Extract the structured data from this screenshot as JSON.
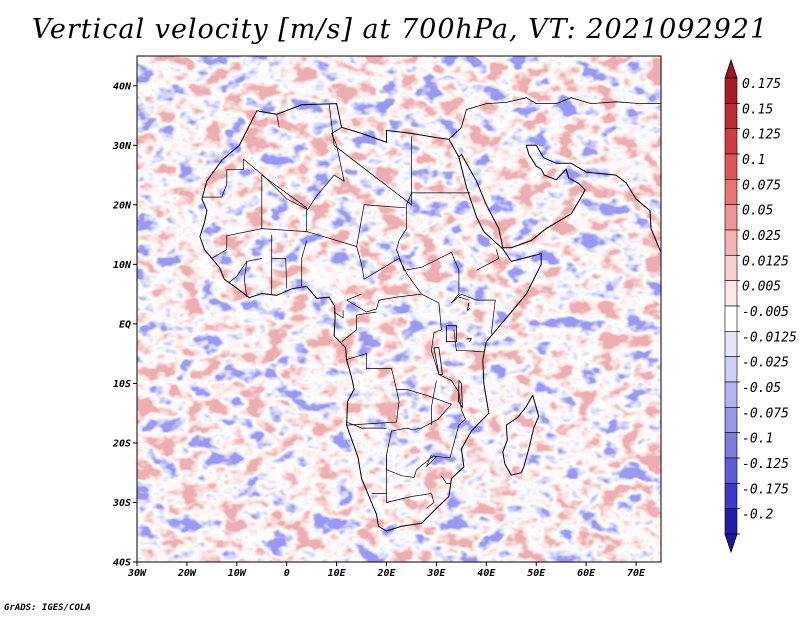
{
  "title": "Vertical velocity [m/s] at 700hPa, VT: 2021092921",
  "credit": "GrADS: IGES/COLA",
  "map": {
    "lon_range": [
      -30,
      75
    ],
    "lat_range": [
      -40,
      45
    ],
    "lat_ticks": [
      {
        "lat": 40,
        "label": "40N"
      },
      {
        "lat": 30,
        "label": "30N"
      },
      {
        "lat": 20,
        "label": "20N"
      },
      {
        "lat": 10,
        "label": "10N"
      },
      {
        "lat": 0,
        "label": "EQ"
      },
      {
        "lat": -10,
        "label": "10S"
      },
      {
        "lat": -20,
        "label": "20S"
      },
      {
        "lat": -30,
        "label": "30S"
      },
      {
        "lat": -40,
        "label": "40S"
      }
    ],
    "lon_ticks": [
      {
        "lon": -30,
        "label": "30W"
      },
      {
        "lon": -20,
        "label": "20W"
      },
      {
        "lon": -10,
        "label": "10W"
      },
      {
        "lon": 0,
        "label": "0"
      },
      {
        "lon": 10,
        "label": "10E"
      },
      {
        "lon": 20,
        "label": "20E"
      },
      {
        "lon": 30,
        "label": "30E"
      },
      {
        "lon": 40,
        "label": "40E"
      },
      {
        "lon": 50,
        "label": "50E"
      },
      {
        "lon": 60,
        "label": "60E"
      },
      {
        "lon": 70,
        "label": "70E"
      }
    ],
    "africa_outline": [
      [
        -17,
        21
      ],
      [
        -16,
        24
      ],
      [
        -13,
        27.5
      ],
      [
        -9.5,
        30
      ],
      [
        -6,
        35.8
      ],
      [
        -2,
        35.2
      ],
      [
        3,
        36.8
      ],
      [
        10,
        37
      ],
      [
        11,
        33
      ],
      [
        15,
        32
      ],
      [
        20,
        30.5
      ],
      [
        20,
        32.5
      ],
      [
        25,
        32
      ],
      [
        30,
        31.3
      ],
      [
        32.5,
        31
      ],
      [
        34.5,
        28
      ],
      [
        36,
        23
      ],
      [
        38,
        18
      ],
      [
        39.5,
        15.5
      ],
      [
        43.3,
        12.6
      ],
      [
        45,
        10.5
      ],
      [
        51,
        11.8
      ],
      [
        51,
        10
      ],
      [
        48,
        5
      ],
      [
        45,
        2
      ],
      [
        42,
        -1
      ],
      [
        40,
        -3
      ],
      [
        39.3,
        -6
      ],
      [
        39.5,
        -10
      ],
      [
        40.5,
        -15
      ],
      [
        37,
        -18
      ],
      [
        35,
        -21
      ],
      [
        35.5,
        -24
      ],
      [
        33,
        -26
      ],
      [
        32.5,
        -29
      ],
      [
        30,
        -31
      ],
      [
        27,
        -33.5
      ],
      [
        23,
        -34
      ],
      [
        20,
        -34.8
      ],
      [
        18.4,
        -34
      ],
      [
        18,
        -32
      ],
      [
        16,
        -28
      ],
      [
        15,
        -26
      ],
      [
        14.3,
        -22.5
      ],
      [
        12,
        -17
      ],
      [
        12.2,
        -13
      ],
      [
        13.5,
        -11
      ],
      [
        13,
        -9
      ],
      [
        12,
        -6
      ],
      [
        11.8,
        -4
      ],
      [
        9.5,
        -2
      ],
      [
        9.7,
        1
      ],
      [
        9.6,
        3
      ],
      [
        8.5,
        4.5
      ],
      [
        6,
        4.3
      ],
      [
        4,
        6.3
      ],
      [
        1,
        5.9
      ],
      [
        -2,
        4.8
      ],
      [
        -5,
        5.1
      ],
      [
        -7.5,
        4.4
      ],
      [
        -10,
        6
      ],
      [
        -12.5,
        7.5
      ],
      [
        -13.5,
        9.5
      ],
      [
        -15,
        11
      ],
      [
        -16.5,
        12.5
      ],
      [
        -17.4,
        14.7
      ],
      [
        -16.5,
        17
      ],
      [
        -16,
        19
      ],
      [
        -17,
        21
      ]
    ],
    "madagascar_outline": [
      [
        49.3,
        -12
      ],
      [
        50.5,
        -15.5
      ],
      [
        49.5,
        -17.5
      ],
      [
        48.5,
        -21
      ],
      [
        47.5,
        -24
      ],
      [
        47,
        -25
      ],
      [
        45,
        -25.4
      ],
      [
        43.7,
        -23.5
      ],
      [
        43.3,
        -21.5
      ],
      [
        44.2,
        -19.5
      ],
      [
        44,
        -17
      ],
      [
        46.3,
        -15.7
      ],
      [
        47.9,
        -14
      ],
      [
        49.3,
        -12
      ]
    ],
    "arabia_outline": [
      [
        32.5,
        31
      ],
      [
        35,
        33
      ],
      [
        36,
        36
      ],
      [
        40,
        37
      ],
      [
        44,
        37.2
      ],
      [
        48,
        38
      ],
      [
        50,
        37
      ],
      [
        54,
        37
      ],
      [
        57,
        38
      ],
      [
        61,
        37
      ],
      [
        66,
        37.3
      ],
      [
        71,
        37
      ],
      [
        75,
        37
      ],
      [
        75,
        45
      ]
    ],
    "arabia_coast": [
      [
        34.5,
        28
      ],
      [
        35,
        28.5
      ],
      [
        38,
        24
      ],
      [
        40,
        20
      ],
      [
        42.5,
        16
      ],
      [
        43.3,
        12.8
      ],
      [
        45,
        12.8
      ],
      [
        49,
        14
      ],
      [
        52,
        16
      ],
      [
        55,
        17.5
      ],
      [
        57,
        18.5
      ],
      [
        58.8,
        21
      ],
      [
        59.8,
        22.5
      ],
      [
        58.5,
        23.6
      ],
      [
        56.5,
        24.5
      ],
      [
        56,
        26
      ],
      [
        54,
        24.2
      ],
      [
        51.6,
        25
      ],
      [
        51,
        26
      ],
      [
        50,
        26.5
      ],
      [
        48.5,
        28.5
      ],
      [
        48,
        30
      ],
      [
        50,
        30
      ],
      [
        51.5,
        27.9
      ],
      [
        54,
        27
      ],
      [
        57,
        27
      ],
      [
        60,
        25.5
      ],
      [
        66,
        25
      ],
      [
        68,
        23.7
      ],
      [
        70,
        21
      ],
      [
        72.8,
        19
      ],
      [
        73,
        16
      ],
      [
        74,
        14
      ],
      [
        75,
        12
      ]
    ],
    "borders": [
      [
        [
          -8.7,
          27.7
        ],
        [
          -8.7,
          25.9
        ],
        [
          -12,
          25.9
        ],
        [
          -12,
          23.5
        ],
        [
          -13,
          21.3
        ],
        [
          -17,
          21.3
        ]
      ],
      [
        [
          -8.7,
          27.7
        ],
        [
          -4.8,
          25
        ],
        [
          0,
          21
        ],
        [
          4.2,
          19.2
        ],
        [
          6,
          21.5
        ],
        [
          9.5,
          25
        ],
        [
          11.5,
          24
        ],
        [
          10,
          30
        ],
        [
          9,
          32
        ],
        [
          11,
          33
        ]
      ],
      [
        [
          -1.5,
          33
        ],
        [
          -2,
          35.1
        ]
      ],
      [
        [
          9.5,
          30
        ],
        [
          8.5,
          37
        ]
      ],
      [
        [
          9.5,
          30
        ],
        [
          25,
          20
        ],
        [
          25,
          31.5
        ]
      ],
      [
        [
          25,
          22
        ],
        [
          36.8,
          22
        ]
      ],
      [
        [
          25,
          22
        ],
        [
          24,
          20
        ],
        [
          24,
          16
        ],
        [
          22.5,
          14
        ],
        [
          22,
          12.5
        ],
        [
          23.5,
          9
        ],
        [
          27,
          9.5
        ],
        [
          33,
          12
        ],
        [
          34.5,
          9
        ],
        [
          34.5,
          5
        ],
        [
          33,
          3.5
        ],
        [
          35,
          5
        ],
        [
          38,
          4
        ],
        [
          41.8,
          4
        ],
        [
          41,
          -1.7
        ]
      ],
      [
        [
          -12,
          15
        ],
        [
          -12,
          12.5
        ],
        [
          -15,
          11
        ]
      ],
      [
        [
          -5,
          25
        ],
        [
          -5,
          16
        ],
        [
          -12,
          14.8
        ]
      ],
      [
        [
          -5,
          25
        ],
        [
          4,
          19.5
        ]
      ],
      [
        [
          -5,
          16
        ],
        [
          4,
          15.5
        ],
        [
          4,
          19.5
        ]
      ],
      [
        [
          4,
          15.5
        ],
        [
          12,
          13.5
        ],
        [
          14,
          13
        ],
        [
          15.5,
          20
        ],
        [
          23.8,
          19.5
        ]
      ],
      [
        [
          14,
          13
        ],
        [
          15,
          10
        ],
        [
          15.5,
          7.5
        ],
        [
          22.5,
          11
        ],
        [
          24,
          8.5
        ],
        [
          27,
          5
        ],
        [
          30.5,
          3.5
        ],
        [
          31,
          -1
        ],
        [
          29.5,
          -1.5
        ],
        [
          29,
          -4.5
        ],
        [
          30.5,
          -8.5
        ],
        [
          33,
          -9.5
        ],
        [
          34.5,
          -11.5
        ],
        [
          35,
          -14.5
        ],
        [
          35.8,
          -16
        ],
        [
          34.5,
          -17
        ],
        [
          32.7,
          -22.5
        ],
        [
          31.3,
          -22.4
        ],
        [
          29.4,
          -22.2
        ],
        [
          26,
          -24.5
        ],
        [
          25.5,
          -25.8
        ],
        [
          23,
          -25.5
        ],
        [
          20,
          -24.5
        ],
        [
          20,
          -22
        ],
        [
          21,
          -18
        ],
        [
          24,
          -17.5
        ],
        [
          25.3,
          -17.8
        ],
        [
          27,
          -17.5
        ],
        [
          30.4,
          -16
        ],
        [
          33,
          -13.5
        ],
        [
          28,
          -12
        ],
        [
          24,
          -11
        ],
        [
          22,
          -11
        ],
        [
          22.5,
          -13
        ],
        [
          22,
          -16.5
        ],
        [
          12,
          -17
        ]
      ],
      [
        [
          3,
          11
        ],
        [
          3,
          6.3
        ]
      ],
      [
        [
          3,
          11
        ],
        [
          4,
          14
        ]
      ],
      [
        [
          -3,
          15
        ],
        [
          -3,
          5
        ]
      ],
      [
        [
          -3,
          11
        ],
        [
          -0.2,
          11
        ],
        [
          0,
          6
        ]
      ],
      [
        [
          -5,
          11
        ],
        [
          -8,
          10.5
        ],
        [
          -8.5,
          7.5
        ],
        [
          -8,
          4.5
        ]
      ],
      [
        [
          -8,
          10.5
        ],
        [
          -10,
          8
        ],
        [
          -11.5,
          7
        ]
      ],
      [
        [
          12,
          4
        ],
        [
          16,
          2
        ],
        [
          18,
          2.5
        ],
        [
          18.5,
          4
        ],
        [
          22,
          4.5
        ],
        [
          27,
          5
        ]
      ],
      [
        [
          12,
          4
        ],
        [
          15,
          5
        ]
      ],
      [
        [
          9.5,
          2
        ],
        [
          11.3,
          1
        ],
        [
          11.3,
          2.3
        ]
      ],
      [
        [
          11,
          -3
        ],
        [
          14,
          -1
        ],
        [
          14,
          1.5
        ],
        [
          18,
          2
        ]
      ],
      [
        [
          12,
          -6
        ],
        [
          16,
          -5
        ],
        [
          16,
          -7.5
        ],
        [
          21,
          -7.5
        ],
        [
          22,
          -11
        ]
      ],
      [
        [
          12,
          -16.5
        ],
        [
          15,
          -17.5
        ],
        [
          20,
          -17.5
        ]
      ],
      [
        [
          20,
          -22
        ],
        [
          20,
          -24.5
        ],
        [
          20,
          -28.5
        ],
        [
          17,
          -28.5
        ]
      ],
      [
        [
          29,
          -22
        ],
        [
          28,
          -24
        ],
        [
          30,
          -22.3
        ]
      ],
      [
        [
          31,
          -25.5
        ],
        [
          32,
          -26.8
        ]
      ],
      [
        [
          38,
          9
        ],
        [
          42.5,
          11
        ],
        [
          42,
          12.5
        ]
      ],
      [
        [
          36.5,
          4
        ],
        [
          34.5,
          4.5
        ]
      ],
      [
        [
          33.5,
          -1
        ],
        [
          34,
          -4.5
        ],
        [
          36,
          -4.5
        ],
        [
          39.5,
          -4.7
        ]
      ],
      [
        [
          30,
          -9.5
        ],
        [
          29,
          -14
        ],
        [
          29,
          -17
        ]
      ],
      [
        [
          33,
          -26.8
        ],
        [
          32,
          -26.8
        ]
      ],
      [
        [
          20,
          -28.5
        ],
        [
          20,
          -30
        ],
        [
          25,
          -29
        ],
        [
          29,
          -28.5
        ],
        [
          29.5,
          -30
        ],
        [
          28,
          -31
        ]
      ]
    ],
    "lakes": [
      [
        [
          32,
          -0.3
        ],
        [
          34,
          -0.3
        ],
        [
          34,
          -3
        ],
        [
          32,
          -3
        ],
        [
          32,
          -0.3
        ]
      ],
      [
        [
          29.5,
          -4
        ],
        [
          30.5,
          -4
        ],
        [
          31.2,
          -8.5
        ],
        [
          30.5,
          -8.5
        ],
        [
          29.5,
          -4
        ]
      ],
      [
        [
          34.5,
          -9.5
        ],
        [
          35,
          -10
        ],
        [
          35.2,
          -14
        ],
        [
          34.4,
          -13
        ],
        [
          34.5,
          -9.5
        ]
      ],
      [
        [
          36.5,
          3.5
        ],
        [
          36.2,
          2.3
        ],
        [
          36.7,
          2.6
        ]
      ],
      [
        [
          36,
          -2.5
        ],
        [
          37,
          -2.5
        ],
        [
          36.6,
          -3
        ]
      ]
    ],
    "palette_note": "red = ascending/positive w, blue = descending/negative w"
  },
  "colorbar": {
    "levels": [
      {
        "label": "0.175",
        "color": "#a71c27"
      },
      {
        "label": "0.15",
        "color": "#bd2a31"
      },
      {
        "label": "0.125",
        "color": "#cf3b3f"
      },
      {
        "label": "0.1",
        "color": "#e05656"
      },
      {
        "label": "0.075",
        "color": "#e77573"
      },
      {
        "label": "0.05",
        "color": "#ee9594"
      },
      {
        "label": "0.025",
        "color": "#f4b4b2"
      },
      {
        "label": "0.0125",
        "color": "#f8d0cf"
      },
      {
        "label": "0.005",
        "color": "#fce8e8"
      },
      {
        "label": "-0.005",
        "color": "#ffffff"
      },
      {
        "label": "-0.0125",
        "color": "#e6e6fb"
      },
      {
        "label": "-0.025",
        "color": "#cfcff6"
      },
      {
        "label": "-0.05",
        "color": "#b4b4f0"
      },
      {
        "label": "-0.075",
        "color": "#9898e8"
      },
      {
        "label": "-0.1",
        "color": "#7b7be0"
      },
      {
        "label": "-0.125",
        "color": "#5d5dd6"
      },
      {
        "label": "-0.175",
        "color": "#3b3bc7"
      },
      {
        "label": "-0.2",
        "color": "#1e1eab"
      }
    ],
    "top_color": "#a0161f",
    "bottom_color": "#1b1ba0"
  }
}
